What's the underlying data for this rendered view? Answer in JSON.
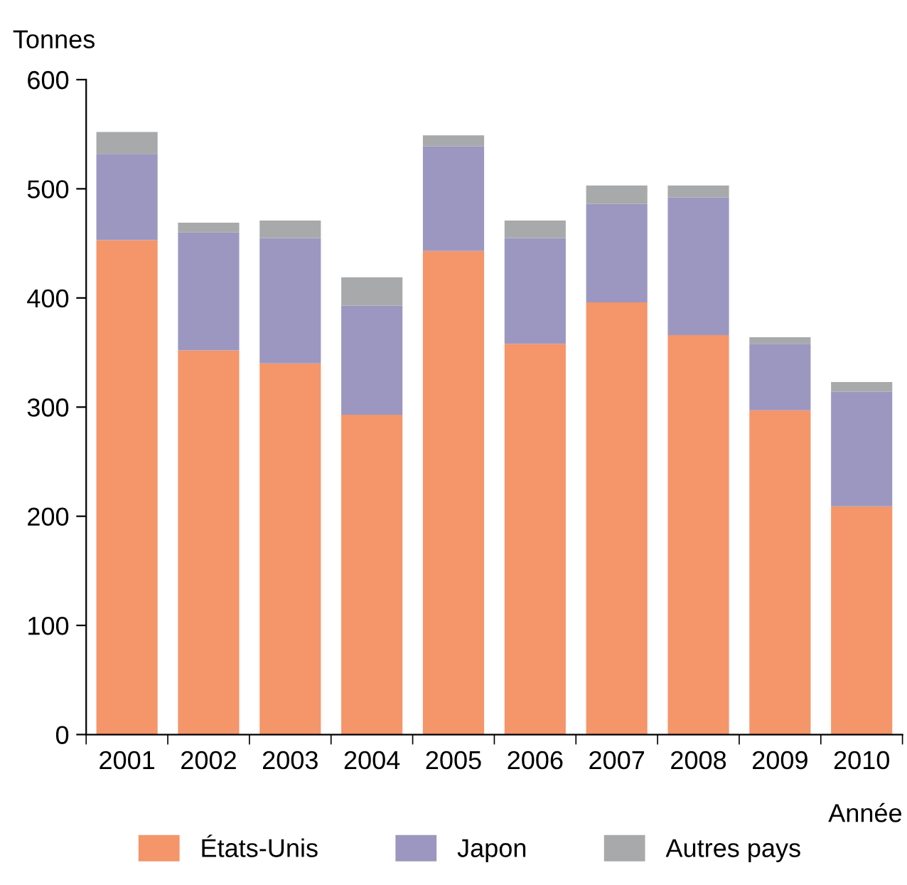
{
  "chart_data": {
    "type": "bar",
    "stacked": true,
    "ylabel": "Tonnes",
    "xlabel": "Année",
    "categories": [
      "2001",
      "2002",
      "2003",
      "2004",
      "2005",
      "2006",
      "2007",
      "2008",
      "2009",
      "2010"
    ],
    "series": [
      {
        "name": "États-Unis",
        "color": "#f4956a",
        "values": [
          453,
          352,
          340,
          293,
          443,
          358,
          396,
          366,
          297,
          209
        ]
      },
      {
        "name": "Japon",
        "color": "#9b97c0",
        "values": [
          79,
          108,
          115,
          100,
          96,
          97,
          90,
          126,
          61,
          105
        ]
      },
      {
        "name": "Autres pays",
        "color": "#a8a9ab",
        "values": [
          20,
          9,
          16,
          26,
          10,
          16,
          17,
          11,
          6,
          9
        ]
      }
    ],
    "ylim": [
      0,
      600
    ],
    "yticks": [
      0,
      100,
      200,
      300,
      400,
      500,
      600
    ],
    "grid": false,
    "legend": "bottom"
  }
}
